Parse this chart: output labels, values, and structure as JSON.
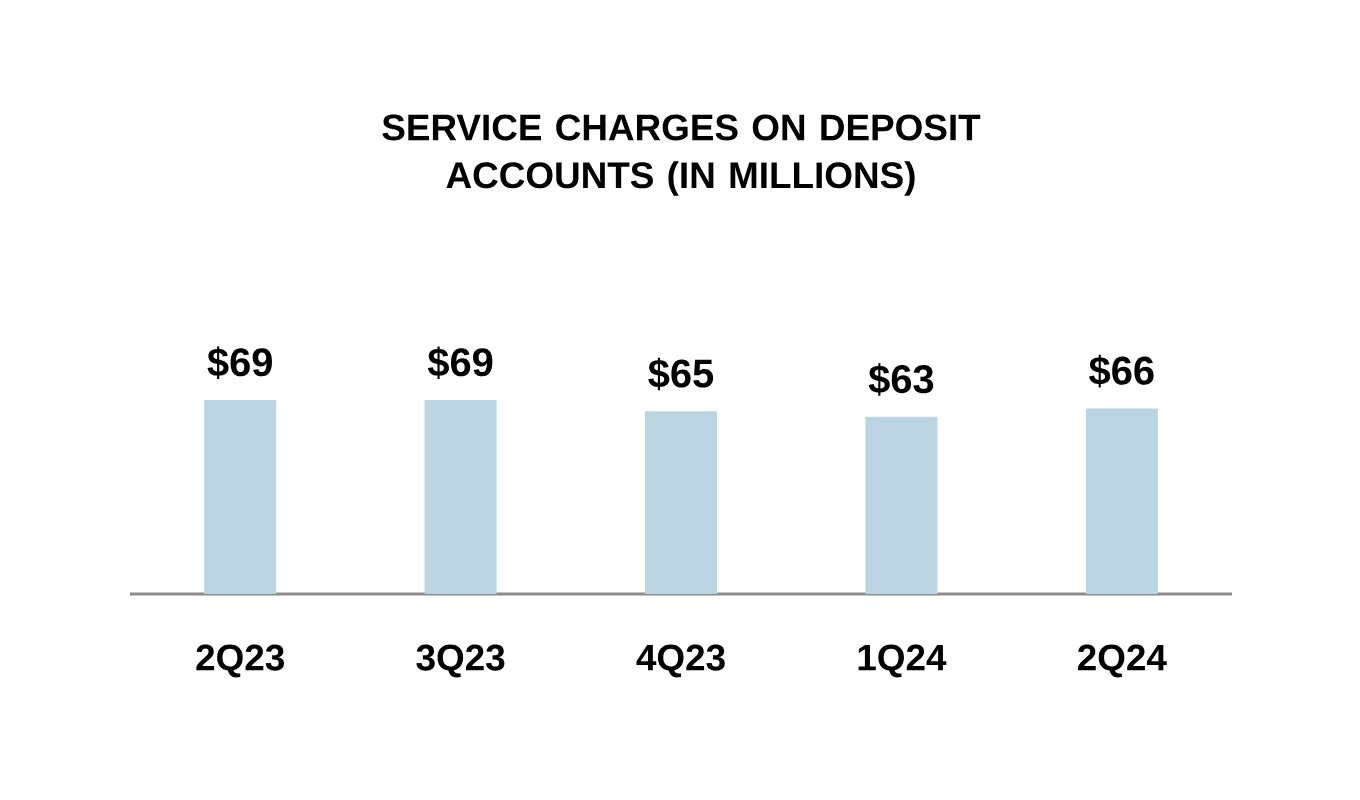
{
  "chart_data": {
    "type": "bar",
    "title": "SERVICE CHARGES ON DEPOSIT ACCOUNTS (IN MILLIONS)",
    "categories": [
      "2Q23",
      "3Q23",
      "4Q23",
      "1Q24",
      "2Q24"
    ],
    "values": [
      69,
      69,
      65,
      63,
      66
    ],
    "value_labels": [
      "$69",
      "$69",
      "$65",
      "$63",
      "$66"
    ],
    "color": "#bad4e1"
  }
}
